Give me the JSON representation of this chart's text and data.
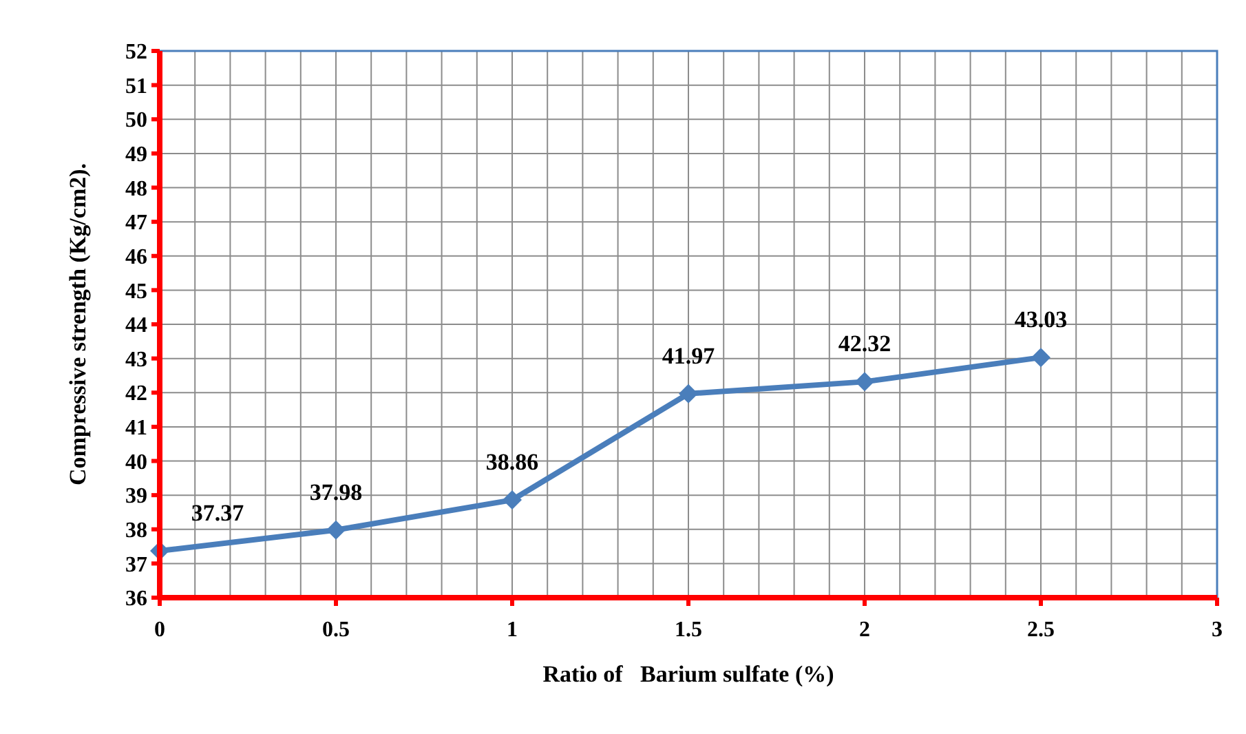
{
  "chart_data": {
    "type": "line",
    "xlabel": "Ratio of   Barium sulfate (%)",
    "ylabel": "Compressive strength (Kg/cm2).",
    "x": [
      0,
      0.5,
      1,
      1.5,
      2,
      2.5
    ],
    "series": [
      {
        "color": "#4a7ebb",
        "values": [
          37.37,
          37.98,
          38.86,
          41.97,
          42.32,
          43.03
        ]
      }
    ],
    "xlim": [
      0,
      3
    ],
    "xticks": [
      0,
      {
        "value": 0.1,
        "label": null
      },
      {
        "value": 0.2,
        "label": null
      },
      {
        "value": 0.3,
        "label": null
      },
      {
        "value": 0.4,
        "label": null
      },
      0.5,
      {
        "value": 0.6,
        "label": null
      },
      {
        "value": 0.7,
        "label": null
      },
      {
        "value": 0.8,
        "label": null
      },
      {
        "value": 0.9,
        "label": null
      },
      1,
      {
        "value": 1.1,
        "label": null
      },
      {
        "value": 1.2,
        "label": null
      },
      {
        "value": 1.3,
        "label": null
      },
      {
        "value": 1.4,
        "label": null
      },
      1.5,
      {
        "value": 1.6,
        "label": null
      },
      {
        "value": 1.7,
        "label": null
      },
      {
        "value": 1.8,
        "label": null
      },
      {
        "value": 1.9,
        "label": null
      },
      2,
      {
        "value": 2.1,
        "label": null
      },
      {
        "value": 2.2,
        "label": null
      },
      {
        "value": 2.3,
        "label": null
      },
      {
        "value": 2.4,
        "label": null
      },
      2.5,
      {
        "value": 2.6,
        "label": null
      },
      {
        "value": 2.7,
        "label": null
      },
      {
        "value": 2.8,
        "label": null
      },
      {
        "value": 2.9,
        "label": null
      },
      3
    ],
    "ylim": [
      36,
      52
    ],
    "yticks": [
      36,
      37,
      38,
      39,
      40,
      41,
      42,
      43,
      44,
      45,
      46,
      47,
      48,
      49,
      50,
      51,
      52
    ],
    "grid": true,
    "marker": "diamond",
    "line_style": "solid",
    "data_labels": true
  }
}
